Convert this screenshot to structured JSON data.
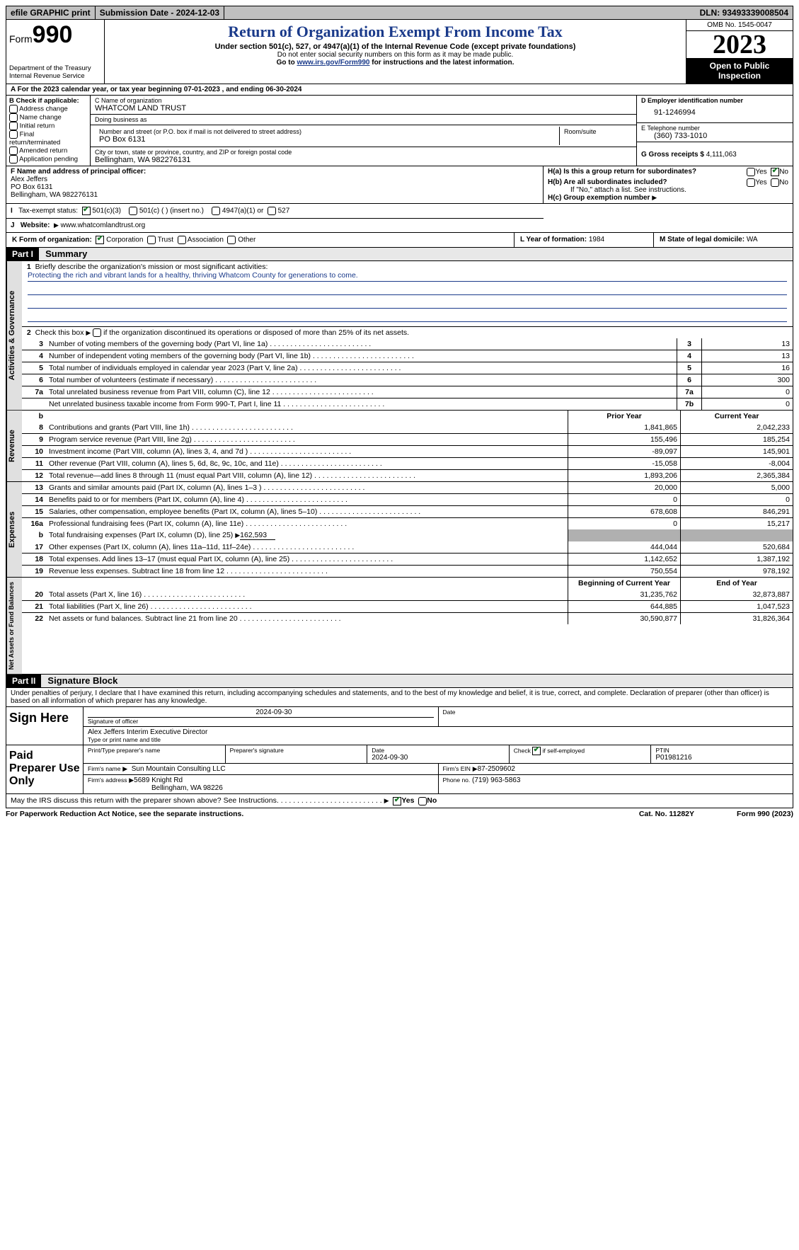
{
  "topbar": {
    "efile": "efile GRAPHIC print",
    "sub_label": "Submission Date - 2024-12-03",
    "dln": "DLN: 93493339008504"
  },
  "header": {
    "form_word": "Form",
    "form_num": "990",
    "dept": "Department of the Treasury\nInternal Revenue Service",
    "title": "Return of Organization Exempt From Income Tax",
    "sub": "Under section 501(c), 527, or 4947(a)(1) of the Internal Revenue Code (except private foundations)",
    "note1": "Do not enter social security numbers on this form as it may be made public.",
    "note2_pre": "Go to ",
    "note2_link": "www.irs.gov/Form990",
    "note2_post": " for instructions and the latest information.",
    "omb": "OMB No. 1545-0047",
    "year": "2023",
    "inspect": "Open to Public Inspection"
  },
  "line_a": "For the 2023 calendar year, or tax year beginning 07-01-2023    , and ending 06-30-2024",
  "box_b": {
    "title": "B Check if applicable:",
    "opts": [
      "Address change",
      "Name change",
      "Initial return",
      "Final return/terminated",
      "Amended return",
      "Application pending"
    ]
  },
  "box_c": {
    "name_lbl": "C Name of organization",
    "name": "WHATCOM LAND TRUST",
    "dba_lbl": "Doing business as",
    "addr_lbl": "Number and street (or P.O. box if mail is not delivered to street address)",
    "addr": "PO Box 6131",
    "room_lbl": "Room/suite",
    "city_lbl": "City or town, state or province, country, and ZIP or foreign postal code",
    "city": "Bellingham, WA  982276131"
  },
  "box_d": {
    "ein_lbl": "D Employer identification number",
    "ein": "91-1246994",
    "tel_lbl": "E Telephone number",
    "tel": "(360) 733-1010",
    "gross_lbl": "G Gross receipts $",
    "gross": "4,111,063"
  },
  "box_f": {
    "lbl": "F  Name and address of principal officer:",
    "name": "Alex Jeffers",
    "addr1": "PO Box 6131",
    "addr2": "Bellingham, WA  982276131"
  },
  "box_h": {
    "a": "H(a)  Is this a group return for subordinates?",
    "b": "H(b)  Are all subordinates included?",
    "b_note": "If \"No,\" attach a list. See instructions.",
    "c": "H(c)  Group exemption number",
    "yes": "Yes",
    "no": "No"
  },
  "box_i": {
    "lbl": "Tax-exempt status:",
    "o1": "501(c)(3)",
    "o2": "501(c) (  ) (insert no.)",
    "o3": "4947(a)(1) or",
    "o4": "527"
  },
  "box_j": {
    "lbl": "Website:",
    "val": "www.whatcomlandtrust.org"
  },
  "box_k": {
    "lbl": "K Form of organization:",
    "o1": "Corporation",
    "o2": "Trust",
    "o3": "Association",
    "o4": "Other"
  },
  "box_l": {
    "lbl": "L Year of formation:",
    "val": "1984"
  },
  "box_m": {
    "lbl": "M State of legal domicile:",
    "val": "WA"
  },
  "part1": {
    "num": "Part I",
    "title": "Summary"
  },
  "mission": {
    "lbl": "Briefly describe the organization's mission or most significant activities:",
    "text": "Protecting the rich and vibrant lands for a healthy, thriving Whatcom County for generations to come."
  },
  "line2": "Check this box      if the organization discontinued its operations or disposed of more than 25% of its net assets.",
  "gov_lines": [
    {
      "n": "3",
      "d": "Number of voting members of the governing body (Part VI, line 1a)",
      "box": "3",
      "v": "13"
    },
    {
      "n": "4",
      "d": "Number of independent voting members of the governing body (Part VI, line 1b)",
      "box": "4",
      "v": "13"
    },
    {
      "n": "5",
      "d": "Total number of individuals employed in calendar year 2023 (Part V, line 2a)",
      "box": "5",
      "v": "16"
    },
    {
      "n": "6",
      "d": "Total number of volunteers (estimate if necessary)",
      "box": "6",
      "v": "300"
    },
    {
      "n": "7a",
      "d": "Total unrelated business revenue from Part VIII, column (C), line 12",
      "box": "7a",
      "v": "0"
    },
    {
      "n": "",
      "d": "Net unrelated business taxable income from Form 990-T, Part I, line 11",
      "box": "7b",
      "v": "0"
    }
  ],
  "pycol": "Prior Year",
  "cycol": "Current Year",
  "rev_lines": [
    {
      "n": "8",
      "d": "Contributions and grants (Part VIII, line 1h)",
      "py": "1,841,865",
      "cy": "2,042,233"
    },
    {
      "n": "9",
      "d": "Program service revenue (Part VIII, line 2g)",
      "py": "155,496",
      "cy": "185,254"
    },
    {
      "n": "10",
      "d": "Investment income (Part VIII, column (A), lines 3, 4, and 7d )",
      "py": "-89,097",
      "cy": "145,901"
    },
    {
      "n": "11",
      "d": "Other revenue (Part VIII, column (A), lines 5, 6d, 8c, 9c, 10c, and 11e)",
      "py": "-15,058",
      "cy": "-8,004"
    },
    {
      "n": "12",
      "d": "Total revenue—add lines 8 through 11 (must equal Part VIII, column (A), line 12)",
      "py": "1,893,206",
      "cy": "2,365,384"
    }
  ],
  "exp_lines": [
    {
      "n": "13",
      "d": "Grants and similar amounts paid (Part IX, column (A), lines 1–3 )",
      "py": "20,000",
      "cy": "5,000"
    },
    {
      "n": "14",
      "d": "Benefits paid to or for members (Part IX, column (A), line 4)",
      "py": "0",
      "cy": "0"
    },
    {
      "n": "15",
      "d": "Salaries, other compensation, employee benefits (Part IX, column (A), lines 5–10)",
      "py": "678,608",
      "cy": "846,291"
    },
    {
      "n": "16a",
      "d": "Professional fundraising fees (Part IX, column (A), line 11e)",
      "py": "0",
      "cy": "15,217"
    }
  ],
  "exp_b": {
    "n": "b",
    "d": "Total fundraising expenses (Part IX, column (D), line 25)",
    "v": "162,593"
  },
  "exp_lines2": [
    {
      "n": "17",
      "d": "Other expenses (Part IX, column (A), lines 11a–11d, 11f–24e)",
      "py": "444,044",
      "cy": "520,684"
    },
    {
      "n": "18",
      "d": "Total expenses. Add lines 13–17 (must equal Part IX, column (A), line 25)",
      "py": "1,142,652",
      "cy": "1,387,192"
    },
    {
      "n": "19",
      "d": "Revenue less expenses. Subtract line 18 from line 12",
      "py": "750,554",
      "cy": "978,192"
    }
  ],
  "bycol": "Beginning of Current Year",
  "eycol": "End of Year",
  "na_lines": [
    {
      "n": "20",
      "d": "Total assets (Part X, line 16)",
      "py": "31,235,762",
      "cy": "32,873,887"
    },
    {
      "n": "21",
      "d": "Total liabilities (Part X, line 26)",
      "py": "644,885",
      "cy": "1,047,523"
    },
    {
      "n": "22",
      "d": "Net assets or fund balances. Subtract line 21 from line 20",
      "py": "30,590,877",
      "cy": "31,826,364"
    }
  ],
  "vert": {
    "gov": "Activities & Governance",
    "rev": "Revenue",
    "exp": "Expenses",
    "na": "Net Assets or\nFund Balances"
  },
  "part2": {
    "num": "Part II",
    "title": "Signature Block"
  },
  "perjury": "Under penalties of perjury, I declare that I have examined this return, including accompanying schedules and statements, and to the best of my knowledge and belief, it is true, correct, and complete. Declaration of preparer (other than officer) is based on all information of which preparer has any knowledge.",
  "sign": {
    "here": "Sign Here",
    "sig_lbl": "Signature of officer",
    "date_lbl": "Date",
    "date": "2024-09-30",
    "name": "Alex Jeffers  Interim Executive Director",
    "name_lbl": "Type or print name and title"
  },
  "paid": {
    "lbl": "Paid Preparer Use Only",
    "c1": "Print/Type preparer's name",
    "c2": "Preparer's signature",
    "c3": "Date",
    "c3v": "2024-09-30",
    "c4": "Check        if self-employed",
    "c5": "PTIN",
    "c5v": "P01981216",
    "firm_lbl": "Firm's name",
    "firm": "Sun Mountain Consulting LLC",
    "ein_lbl": "Firm's EIN",
    "ein": "87-2509602",
    "addr_lbl": "Firm's address",
    "addr": "5689 Knight Rd",
    "addr2": "Bellingham, WA  98226",
    "phone_lbl": "Phone no.",
    "phone": "(719) 963-5863"
  },
  "discuss": "May the IRS discuss this return with the preparer shown above? See Instructions.",
  "footer": {
    "l": "For Paperwork Reduction Act Notice, see the separate instructions.",
    "m": "Cat. No. 11282Y",
    "r": "Form 990 (2023)"
  }
}
